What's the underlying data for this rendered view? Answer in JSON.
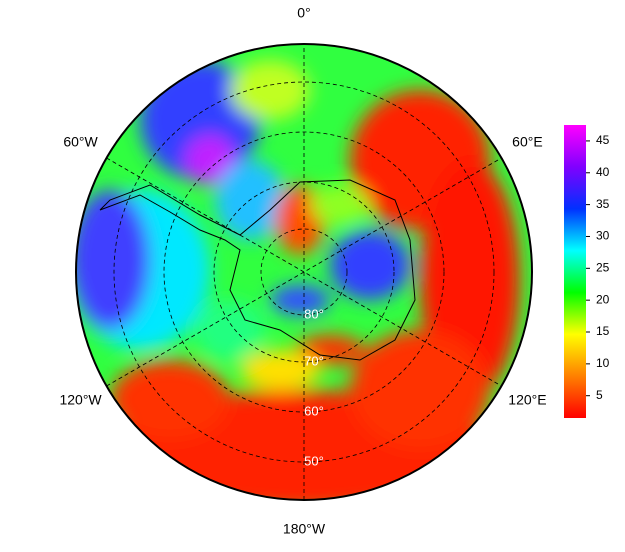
{
  "map": {
    "lon_labels": [
      "0°",
      "60°E",
      "120°E",
      "180°W",
      "120°W",
      "60°W"
    ],
    "lat_labels": [
      "80°",
      "70°",
      "60°",
      "50°"
    ],
    "colorbar": {
      "lim": [
        1.5,
        47.5
      ],
      "ticks": [
        5,
        10,
        15,
        20,
        25,
        30,
        35,
        40,
        45
      ],
      "colors": [
        "#ff0000",
        "#ff8000",
        "#ffff00",
        "#00ff00",
        "#00ffff",
        "#0030ff",
        "#8000ff",
        "#ff00ff"
      ]
    }
  }
}
